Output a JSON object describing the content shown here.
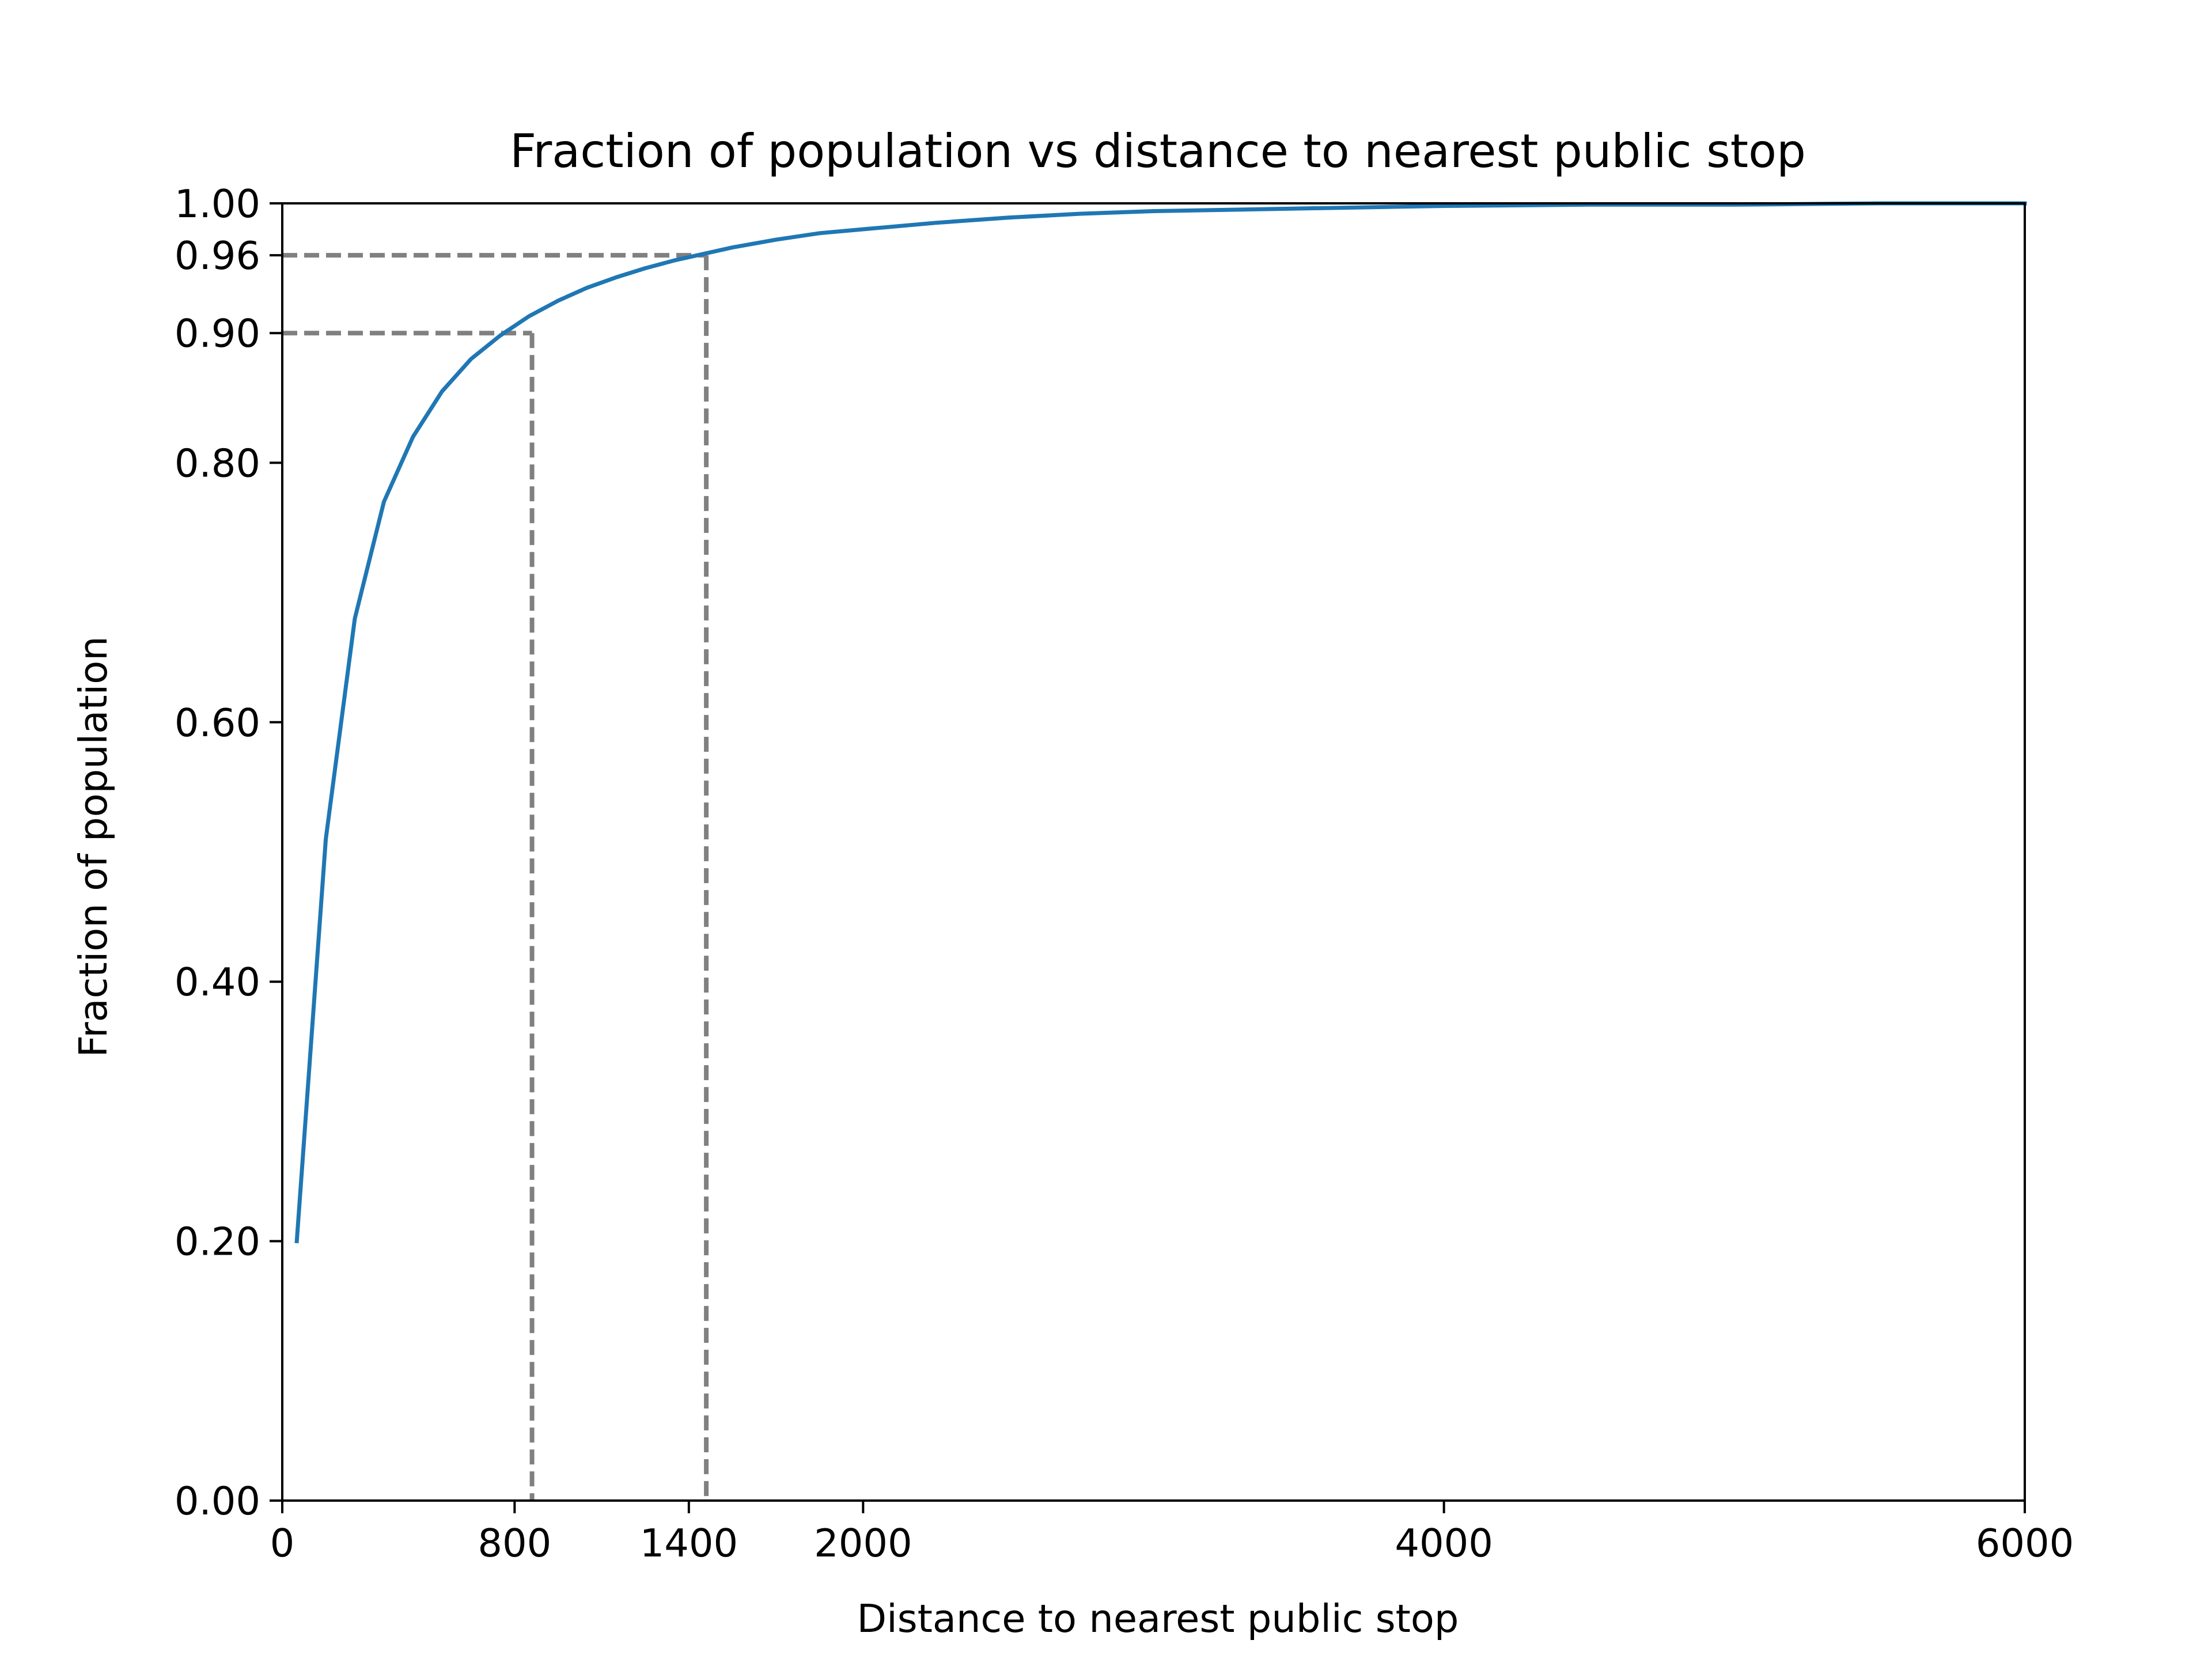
{
  "chart_data": {
    "type": "line",
    "title": "Fraction of population vs distance to nearest public stop",
    "xlabel": "Distance to nearest public stop",
    "ylabel": "Fraction of population",
    "xlim": [
      0,
      6000
    ],
    "ylim": [
      0,
      1.0
    ],
    "x_ticks": [
      0,
      800,
      1400,
      2000,
      4000,
      6000
    ],
    "x_tick_labels": [
      "0",
      "800",
      "1400",
      "2000",
      "4000",
      "6000"
    ],
    "y_ticks": [
      0,
      0.2,
      0.4,
      0.6,
      0.8,
      0.9,
      0.96,
      1.0
    ],
    "y_tick_labels": [
      "0.00",
      "0.20",
      "0.40",
      "0.60",
      "0.80",
      "0.90",
      "0.96",
      "1.00"
    ],
    "grid": false,
    "series": [
      {
        "color": "#1f77b4",
        "x": [
          50,
          150,
          250,
          350,
          450,
          550,
          650,
          750,
          850,
          950,
          1050,
          1150,
          1250,
          1350,
          1450,
          1550,
          1700,
          1850,
          2000,
          2250,
          2500,
          2750,
          3000,
          3500,
          4000,
          4500,
          5000,
          5500,
          6000
        ],
        "y": [
          0.2,
          0.51,
          0.68,
          0.77,
          0.82,
          0.855,
          0.88,
          0.898,
          0.913,
          0.925,
          0.935,
          0.943,
          0.95,
          0.956,
          0.961,
          0.966,
          0.972,
          0.977,
          0.98,
          0.985,
          0.989,
          0.992,
          0.994,
          0.996,
          0.998,
          0.999,
          0.999,
          1.0,
          1.0
        ]
      }
    ],
    "reference_lines": [
      {
        "x": 860,
        "y": 0.9,
        "color": "#808080",
        "style": "dashed"
      },
      {
        "x": 1460,
        "y": 0.96,
        "color": "#808080",
        "style": "dashed"
      }
    ]
  }
}
